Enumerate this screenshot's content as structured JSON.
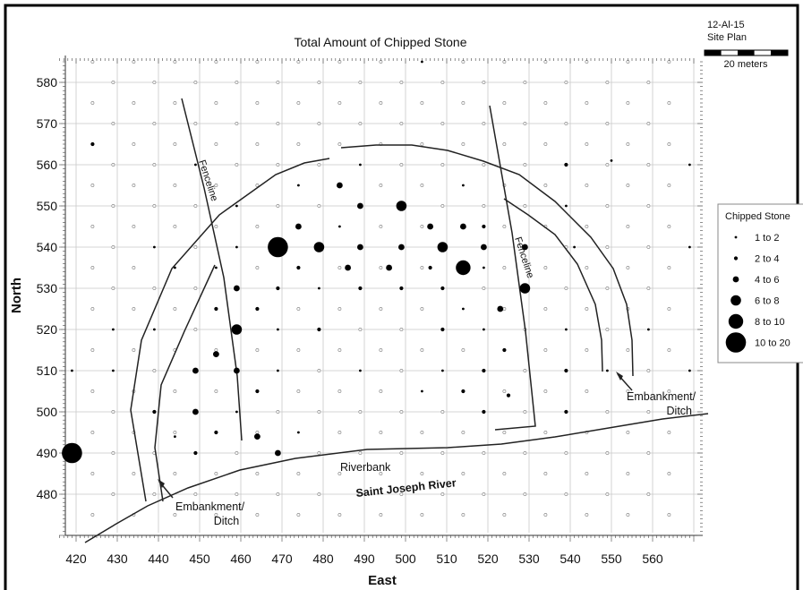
{
  "title": "Total Amount of Chipped Stone",
  "site": {
    "id": "12-Al-15",
    "subtitle": "Site Plan",
    "scale_label": "20 meters"
  },
  "axes": {
    "x_label": "East",
    "y_label": "North",
    "x_ticks": [
      420,
      430,
      440,
      450,
      460,
      470,
      480,
      490,
      500,
      510,
      520,
      530,
      540,
      550,
      560
    ],
    "y_ticks": [
      480,
      490,
      500,
      510,
      520,
      530,
      540,
      550,
      560,
      570,
      580
    ]
  },
  "legend": {
    "title": "Chipped Stone",
    "entries": [
      "1  to  2",
      "2  to  4",
      "4  to  6",
      "6  to  8",
      "8  to 10",
      "10  to  20"
    ]
  },
  "labels": {
    "fenceline_west": "Fenceline",
    "fenceline_east": "Fenceline",
    "embankment_west_1": "Embankment/",
    "embankment_west_2": "Ditch",
    "embankment_east_1": "Embankment/",
    "embankment_east_2": "Ditch",
    "riverbank": "Riverbank",
    "river": "Saint Joseph River"
  },
  "chart_data": {
    "type": "scatter",
    "title": "Total Amount of Chipped Stone",
    "xlabel": "East",
    "ylabel": "North",
    "xlim": [
      416,
      570
    ],
    "ylim": [
      470,
      585
    ],
    "size_classes": [
      "1 to 2",
      "2 to 4",
      "4 to 6",
      "6 to 8",
      "8 to 10",
      "10 to 20"
    ],
    "points": [
      {
        "x": 424,
        "y": 565,
        "cls": 1
      },
      {
        "x": 504,
        "y": 585,
        "cls": 0
      },
      {
        "x": 449,
        "y": 560,
        "cls": 0
      },
      {
        "x": 489,
        "y": 560,
        "cls": 0
      },
      {
        "x": 539,
        "y": 560,
        "cls": 1
      },
      {
        "x": 569,
        "y": 560,
        "cls": 0
      },
      {
        "x": 550,
        "y": 561,
        "cls": 0
      },
      {
        "x": 484,
        "y": 555,
        "cls": 2
      },
      {
        "x": 514,
        "y": 555,
        "cls": 0
      },
      {
        "x": 474,
        "y": 555,
        "cls": 0
      },
      {
        "x": 489,
        "y": 550,
        "cls": 2
      },
      {
        "x": 499,
        "y": 550,
        "cls": 3
      },
      {
        "x": 459,
        "y": 550,
        "cls": 0
      },
      {
        "x": 539,
        "y": 550,
        "cls": 0
      },
      {
        "x": 474,
        "y": 545,
        "cls": 2
      },
      {
        "x": 506,
        "y": 545,
        "cls": 2
      },
      {
        "x": 514,
        "y": 545,
        "cls": 2
      },
      {
        "x": 519,
        "y": 545,
        "cls": 1
      },
      {
        "x": 484,
        "y": 545,
        "cls": 0
      },
      {
        "x": 469,
        "y": 540,
        "cls": 5
      },
      {
        "x": 479,
        "y": 540,
        "cls": 3
      },
      {
        "x": 489,
        "y": 540,
        "cls": 2
      },
      {
        "x": 499,
        "y": 540,
        "cls": 2
      },
      {
        "x": 509,
        "y": 540,
        "cls": 3
      },
      {
        "x": 519,
        "y": 540,
        "cls": 2
      },
      {
        "x": 529,
        "y": 540,
        "cls": 2
      },
      {
        "x": 439,
        "y": 540,
        "cls": 0
      },
      {
        "x": 459,
        "y": 540,
        "cls": 0
      },
      {
        "x": 541,
        "y": 540,
        "cls": 0
      },
      {
        "x": 569,
        "y": 540,
        "cls": 0
      },
      {
        "x": 514,
        "y": 535,
        "cls": 4
      },
      {
        "x": 486,
        "y": 535,
        "cls": 2
      },
      {
        "x": 496,
        "y": 535,
        "cls": 2
      },
      {
        "x": 474,
        "y": 535,
        "cls": 1
      },
      {
        "x": 506,
        "y": 535,
        "cls": 1
      },
      {
        "x": 444,
        "y": 535,
        "cls": 0
      },
      {
        "x": 454,
        "y": 535,
        "cls": 0
      },
      {
        "x": 519,
        "y": 535,
        "cls": 0
      },
      {
        "x": 529,
        "y": 530,
        "cls": 3
      },
      {
        "x": 459,
        "y": 530,
        "cls": 2
      },
      {
        "x": 469,
        "y": 530,
        "cls": 1
      },
      {
        "x": 489,
        "y": 530,
        "cls": 1
      },
      {
        "x": 499,
        "y": 530,
        "cls": 1
      },
      {
        "x": 509,
        "y": 530,
        "cls": 1
      },
      {
        "x": 479,
        "y": 530,
        "cls": 0
      },
      {
        "x": 523,
        "y": 525,
        "cls": 2
      },
      {
        "x": 454,
        "y": 525,
        "cls": 1
      },
      {
        "x": 464,
        "y": 525,
        "cls": 1
      },
      {
        "x": 514,
        "y": 525,
        "cls": 0
      },
      {
        "x": 459,
        "y": 520,
        "cls": 3
      },
      {
        "x": 479,
        "y": 520,
        "cls": 1
      },
      {
        "x": 509,
        "y": 520,
        "cls": 1
      },
      {
        "x": 429,
        "y": 520,
        "cls": 0
      },
      {
        "x": 439,
        "y": 520,
        "cls": 0
      },
      {
        "x": 469,
        "y": 520,
        "cls": 0
      },
      {
        "x": 519,
        "y": 520,
        "cls": 0
      },
      {
        "x": 539,
        "y": 520,
        "cls": 0
      },
      {
        "x": 559,
        "y": 520,
        "cls": 0
      },
      {
        "x": 454,
        "y": 514,
        "cls": 2
      },
      {
        "x": 524,
        "y": 515,
        "cls": 1
      },
      {
        "x": 449,
        "y": 510,
        "cls": 2
      },
      {
        "x": 459,
        "y": 510,
        "cls": 2
      },
      {
        "x": 519,
        "y": 510,
        "cls": 1
      },
      {
        "x": 539,
        "y": 510,
        "cls": 1
      },
      {
        "x": 419,
        "y": 510,
        "cls": 0
      },
      {
        "x": 429,
        "y": 510,
        "cls": 0
      },
      {
        "x": 469,
        "y": 510,
        "cls": 0
      },
      {
        "x": 489,
        "y": 510,
        "cls": 0
      },
      {
        "x": 509,
        "y": 510,
        "cls": 0
      },
      {
        "x": 549,
        "y": 510,
        "cls": 0
      },
      {
        "x": 569,
        "y": 510,
        "cls": 0
      },
      {
        "x": 464,
        "y": 505,
        "cls": 1
      },
      {
        "x": 514,
        "y": 505,
        "cls": 1
      },
      {
        "x": 504,
        "y": 505,
        "cls": 0
      },
      {
        "x": 525,
        "y": 504,
        "cls": 1
      },
      {
        "x": 449,
        "y": 500,
        "cls": 2
      },
      {
        "x": 439,
        "y": 500,
        "cls": 1
      },
      {
        "x": 519,
        "y": 500,
        "cls": 1
      },
      {
        "x": 539,
        "y": 500,
        "cls": 1
      },
      {
        "x": 459,
        "y": 500,
        "cls": 0
      },
      {
        "x": 454,
        "y": 495,
        "cls": 1
      },
      {
        "x": 444,
        "y": 494,
        "cls": 0
      },
      {
        "x": 474,
        "y": 495,
        "cls": 0
      },
      {
        "x": 464,
        "y": 494,
        "cls": 2
      },
      {
        "x": 419,
        "y": 490,
        "cls": 5
      },
      {
        "x": 469,
        "y": 490,
        "cls": 2
      },
      {
        "x": 449,
        "y": 490,
        "cls": 1
      }
    ]
  }
}
